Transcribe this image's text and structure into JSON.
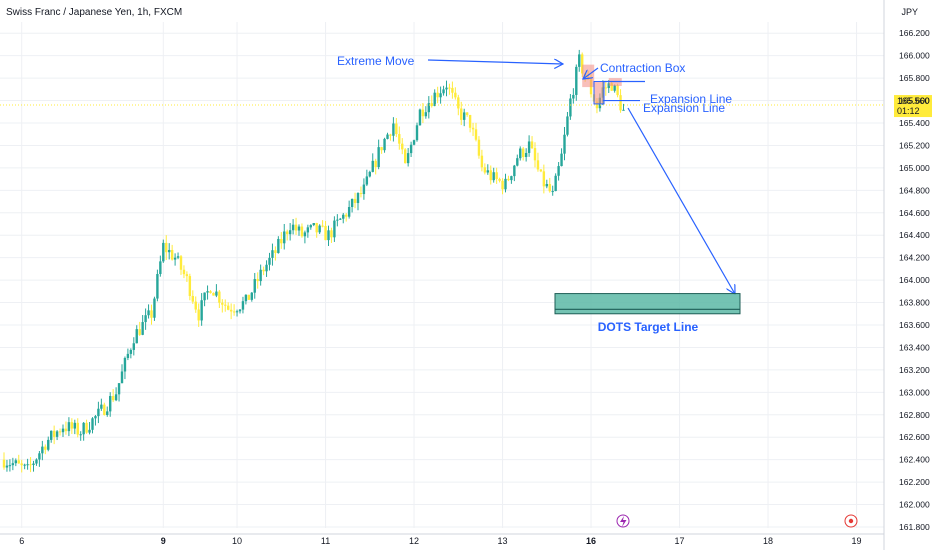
{
  "chart_data": {
    "type": "candlestick",
    "title": "Swiss Franc / Japanese Yen, 1h, FXCM",
    "currency": "JPY",
    "ylim": [
      161.75,
      166.35
    ],
    "y_ticks": [
      "161.800",
      "162.000",
      "162.200",
      "162.400",
      "162.600",
      "162.800",
      "163.000",
      "163.200",
      "163.400",
      "163.600",
      "163.800",
      "164.000",
      "164.200",
      "164.400",
      "164.600",
      "164.800",
      "165.000",
      "165.200",
      "165.400",
      "165.600",
      "165.800",
      "166.000",
      "166.200"
    ],
    "y_tick_values": [
      161.8,
      162.0,
      162.2,
      162.4,
      162.6,
      162.8,
      163.0,
      163.2,
      163.4,
      163.6,
      163.8,
      164.0,
      164.2,
      164.4,
      164.6,
      164.8,
      165.0,
      165.2,
      165.4,
      165.6,
      165.8,
      166.0,
      166.2
    ],
    "x_ticks": [
      {
        "label": "6",
        "bold": false,
        "idx": 6
      },
      {
        "label": "9",
        "bold": true,
        "idx": 54
      },
      {
        "label": "10",
        "bold": false,
        "idx": 79
      },
      {
        "label": "11",
        "bold": false,
        "idx": 109
      },
      {
        "label": "12",
        "bold": false,
        "idx": 139
      },
      {
        "label": "13",
        "bold": false,
        "idx": 169
      },
      {
        "label": "16",
        "bold": true,
        "idx": 199
      },
      {
        "label": "17",
        "bold": false,
        "idx": 229
      },
      {
        "label": "18",
        "bold": false,
        "idx": 259
      },
      {
        "label": "19",
        "bold": false,
        "idx": 289
      }
    ],
    "last_price": {
      "value": 165.56,
      "label": "165.560",
      "countdown": "01:12"
    },
    "up_color": "#26a69a",
    "down_color": "#ffeb3b",
    "price_waypoints": [
      [
        0,
        162.4
      ],
      [
        8,
        162.3
      ],
      [
        14,
        162.55
      ],
      [
        20,
        162.7
      ],
      [
        26,
        162.65
      ],
      [
        32,
        162.8
      ],
      [
        38,
        163.0
      ],
      [
        44,
        163.5
      ],
      [
        50,
        163.7
      ],
      [
        54,
        164.3
      ],
      [
        58,
        164.2
      ],
      [
        62,
        164.0
      ],
      [
        66,
        163.7
      ],
      [
        70,
        163.95
      ],
      [
        76,
        163.75
      ],
      [
        82,
        163.8
      ],
      [
        88,
        164.1
      ],
      [
        92,
        164.25
      ],
      [
        97,
        164.5
      ],
      [
        101,
        164.4
      ],
      [
        105,
        164.45
      ],
      [
        110,
        164.4
      ],
      [
        116,
        164.6
      ],
      [
        122,
        164.8
      ],
      [
        128,
        165.2
      ],
      [
        132,
        165.4
      ],
      [
        136,
        165.0
      ],
      [
        141,
        165.5
      ],
      [
        146,
        165.65
      ],
      [
        150,
        165.75
      ],
      [
        154,
        165.5
      ],
      [
        158,
        165.4
      ],
      [
        162,
        165.0
      ],
      [
        166,
        164.9
      ],
      [
        170,
        164.85
      ],
      [
        174,
        165.1
      ],
      [
        178,
        165.2
      ],
      [
        182,
        164.9
      ],
      [
        186,
        164.75
      ],
      [
        189,
        165.1
      ],
      [
        192,
        165.6
      ],
      [
        195,
        165.95
      ],
      [
        198,
        165.75
      ],
      [
        201,
        165.55
      ],
      [
        203,
        165.7
      ],
      [
        206,
        165.75
      ],
      [
        210,
        165.5
      ]
    ],
    "annotations": {
      "extreme_move": "Extreme Move",
      "contraction_box": "Contraction Box",
      "expansion_line_1": "Expansion Line",
      "expansion_line_2": "Expansion Line",
      "target_label": "DOTS Target Line",
      "target_zone_top": 163.88,
      "target_zone_bottom": 163.7,
      "target_line": 163.74,
      "contraction_box_top": 165.92,
      "contraction_box_bottom": 165.72,
      "expansion_box_top": 165.77,
      "expansion_box_bottom": 165.57
    },
    "colors": {
      "annotation": "#2962ff",
      "target_fill": "#5cb8a6",
      "target_border": "#1e5e56",
      "box_fill": "#f28b82",
      "price_line": "#ffeb3b",
      "icon_purple": "#9c27b0",
      "icon_red": "#e53935"
    }
  }
}
